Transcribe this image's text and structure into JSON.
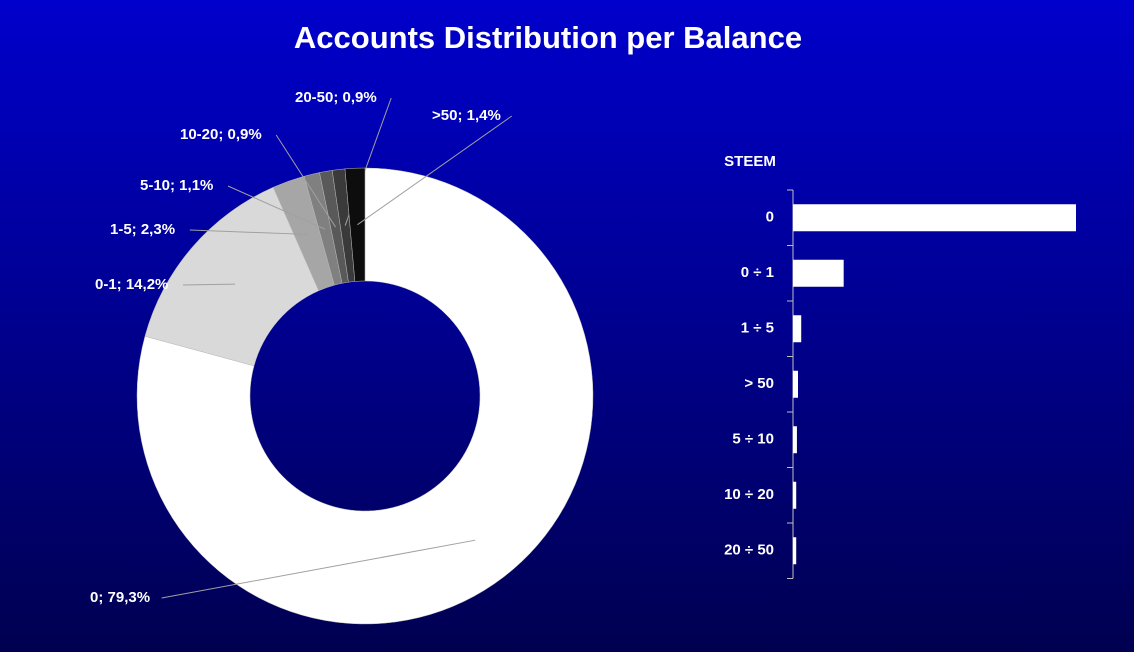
{
  "chart_data": [
    {
      "type": "donut",
      "title": "Accounts Distribution per Balance",
      "categories": [
        "0",
        "0-1",
        "1-5",
        "5-10",
        "10-20",
        "20-50",
        ">50"
      ],
      "values": [
        79.3,
        14.2,
        2.3,
        1.1,
        0.9,
        0.9,
        1.4
      ],
      "value_labels": [
        "0; 79,3%",
        "0-1; 14,2%",
        "1-5; 2,3%",
        "5-10; 1,1%",
        "10-20; 0,9%",
        "20-50; 0,9%",
        ">50; 1,4%"
      ],
      "colors": [
        "#ffffff",
        "#d9d9d9",
        "#a6a6a6",
        "#808080",
        "#595959",
        "#3a3a3a",
        "#0d0d0d"
      ]
    },
    {
      "type": "hbar",
      "y_label": "STEEM",
      "categories": [
        "0",
        "0 ÷ 1",
        "1 ÷ 5",
        "> 50",
        "5 ÷ 10",
        "10 ÷ 20",
        "20 ÷ 50"
      ],
      "values": [
        79.3,
        14.2,
        2.3,
        1.4,
        1.1,
        0.9,
        0.9
      ],
      "color": "#ffffff"
    }
  ]
}
